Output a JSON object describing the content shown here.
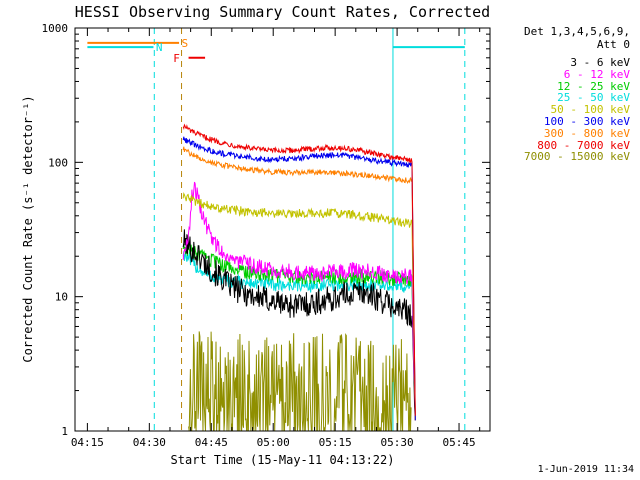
{
  "footer": {
    "timestamp": "1-Jun-2019 11:34"
  },
  "chart_data": {
    "type": "line",
    "title": "HESSI Observing Summary Count Rates, Corrected",
    "xlabel": "Start Time (15-May-11 04:13:22)",
    "ylabel": "Corrected Count Rate (s⁻¹ detector⁻¹)",
    "x_axis": {
      "unit": "minutes-since-midnight",
      "min": 252,
      "max": 352.5,
      "minor_step": 5,
      "major_ticks": [
        {
          "t": 255,
          "label": "04:15"
        },
        {
          "t": 270,
          "label": "04:30"
        },
        {
          "t": 285,
          "label": "04:45"
        },
        {
          "t": 300,
          "label": "05:00"
        },
        {
          "t": 315,
          "label": "05:15"
        },
        {
          "t": 330,
          "label": "05:30"
        },
        {
          "t": 345,
          "label": "05:45"
        }
      ]
    },
    "y_axis": {
      "scale": "log",
      "min": 1,
      "max": 1000,
      "ticks": [
        1,
        10,
        100,
        1000
      ]
    },
    "legend": {
      "det_line": "Det 1,3,4,5,6,9,",
      "att_line": "Att 0"
    },
    "series": [
      {
        "name": "3 - 6 keV",
        "color": "#000000",
        "noise": 0.1,
        "seed": 101,
        "points": [
          [
            278.2,
            26
          ],
          [
            280,
            23
          ],
          [
            282,
            20
          ],
          [
            284,
            17
          ],
          [
            286,
            15
          ],
          [
            289,
            12.5
          ],
          [
            292,
            11
          ],
          [
            296,
            10
          ],
          [
            300,
            9.2
          ],
          [
            305,
            8.6
          ],
          [
            310,
            9
          ],
          [
            314,
            9.6
          ],
          [
            318,
            10.5
          ],
          [
            322,
            11
          ],
          [
            326,
            9.5
          ],
          [
            330,
            8.2
          ],
          [
            333.6,
            7.5
          ],
          [
            334.4,
            1.2
          ]
        ]
      },
      {
        "name": "6 - 12 keV",
        "color": "#FF00FF",
        "noise": 0.06,
        "seed": 102,
        "points": [
          [
            278.2,
            20
          ],
          [
            279,
            24
          ],
          [
            279.8,
            36
          ],
          [
            280.3,
            55
          ],
          [
            280.8,
            66
          ],
          [
            281.4,
            60
          ],
          [
            282.2,
            48
          ],
          [
            283.2,
            38
          ],
          [
            284.5,
            30
          ],
          [
            286,
            25
          ],
          [
            288,
            21
          ],
          [
            291,
            18.5
          ],
          [
            295,
            17
          ],
          [
            300,
            16
          ],
          [
            305,
            15.2
          ],
          [
            310,
            15
          ],
          [
            315,
            15.3
          ],
          [
            320,
            15.8
          ],
          [
            325,
            15.2
          ],
          [
            330,
            14.3
          ],
          [
            333.6,
            14
          ],
          [
            334.4,
            1.2
          ]
        ]
      },
      {
        "name": "12 - 25 keV",
        "color": "#00CC00",
        "noise": 0.055,
        "seed": 103,
        "points": [
          [
            278.2,
            24
          ],
          [
            281,
            21
          ],
          [
            284,
            19
          ],
          [
            288,
            17
          ],
          [
            292,
            15.5
          ],
          [
            296,
            15
          ],
          [
            300,
            14.5
          ],
          [
            305,
            14
          ],
          [
            310,
            13.8
          ],
          [
            315,
            14
          ],
          [
            320,
            14.2
          ],
          [
            325,
            14
          ],
          [
            330,
            13.5
          ],
          [
            333.6,
            13
          ],
          [
            334.4,
            1.2
          ]
        ]
      },
      {
        "name": "25 - 50 keV",
        "color": "#00DDDD",
        "noise": 0.05,
        "seed": 104,
        "points": [
          [
            278.2,
            21
          ],
          [
            281,
            17
          ],
          [
            284,
            14.5
          ],
          [
            288,
            13.2
          ],
          [
            292,
            12.8
          ],
          [
            296,
            12.5
          ],
          [
            300,
            12.3
          ],
          [
            305,
            12.2
          ],
          [
            310,
            12
          ],
          [
            315,
            12.2
          ],
          [
            320,
            12.4
          ],
          [
            325,
            12.2
          ],
          [
            330,
            12
          ],
          [
            333.6,
            11.8
          ],
          [
            334.4,
            1.2
          ]
        ]
      },
      {
        "name": "50 - 100 keV",
        "color": "#C2C200",
        "noise": 0.035,
        "seed": 105,
        "points": [
          [
            278.2,
            56
          ],
          [
            281,
            51
          ],
          [
            284,
            48
          ],
          [
            288,
            45
          ],
          [
            292,
            43.5
          ],
          [
            296,
            42.5
          ],
          [
            300,
            42
          ],
          [
            305,
            41.5
          ],
          [
            310,
            41.8
          ],
          [
            315,
            42
          ],
          [
            320,
            40.5
          ],
          [
            325,
            38.5
          ],
          [
            330,
            36.5
          ],
          [
            333.6,
            35
          ],
          [
            334.4,
            1.2
          ]
        ]
      },
      {
        "name": "100 - 300 keV",
        "color": "#0000EE",
        "noise": 0.022,
        "seed": 106,
        "points": [
          [
            278.2,
            150
          ],
          [
            280,
            140
          ],
          [
            282,
            131
          ],
          [
            285,
            122
          ],
          [
            288,
            116
          ],
          [
            291,
            112
          ],
          [
            294,
            109
          ],
          [
            297,
            107
          ],
          [
            300,
            105.5
          ],
          [
            303,
            105.8
          ],
          [
            306,
            107.5
          ],
          [
            309,
            110
          ],
          [
            312,
            112.5
          ],
          [
            315,
            113
          ],
          [
            318,
            111.5
          ],
          [
            321,
            108
          ],
          [
            324,
            104
          ],
          [
            327,
            100.5
          ],
          [
            330,
            97.5
          ],
          [
            333.6,
            95
          ],
          [
            334.4,
            1.2
          ]
        ]
      },
      {
        "name": "300 - 800 keV",
        "color": "#FF8000",
        "noise": 0.02,
        "seed": 107,
        "points": [
          [
            278.2,
            126
          ],
          [
            280,
            116
          ],
          [
            282,
            108
          ],
          [
            285,
            100
          ],
          [
            288,
            95
          ],
          [
            291,
            91
          ],
          [
            294,
            88.5
          ],
          [
            297,
            86.5
          ],
          [
            300,
            85
          ],
          [
            304,
            84
          ],
          [
            308,
            84
          ],
          [
            312,
            84.5
          ],
          [
            316,
            83.5
          ],
          [
            320,
            81.5
          ],
          [
            324,
            79
          ],
          [
            328,
            76
          ],
          [
            333.6,
            73
          ],
          [
            334.4,
            1.2
          ]
        ]
      },
      {
        "name": "800 - 7000 keV",
        "color": "#EE0000",
        "noise": 0.02,
        "seed": 108,
        "points": [
          [
            278.2,
            188
          ],
          [
            280,
            172
          ],
          [
            282,
            160
          ],
          [
            285,
            148
          ],
          [
            288,
            139
          ],
          [
            291,
            133
          ],
          [
            294,
            128
          ],
          [
            297,
            124.5
          ],
          [
            300,
            122
          ],
          [
            303,
            122
          ],
          [
            306,
            123.5
          ],
          [
            309,
            126
          ],
          [
            312,
            128
          ],
          [
            315,
            128.5
          ],
          [
            318,
            126.5
          ],
          [
            321,
            122
          ],
          [
            324,
            117
          ],
          [
            327,
            112
          ],
          [
            330,
            108
          ],
          [
            333.6,
            104
          ],
          [
            334.4,
            1.3
          ]
        ]
      },
      {
        "name": "7000 - 15000 keV",
        "color": "#8F8F00",
        "noise": 0.5,
        "seed": 109,
        "points": [
          [
            279.5,
            1.8
          ],
          [
            283,
            1.9
          ],
          [
            286,
            1.8
          ],
          [
            290,
            1.7
          ],
          [
            294,
            1.8
          ],
          [
            298,
            1.6
          ],
          [
            302,
            1.7
          ],
          [
            306,
            1.7
          ],
          [
            310,
            1.8
          ],
          [
            314,
            1.6
          ],
          [
            318,
            1.7
          ],
          [
            322,
            1.6
          ],
          [
            326,
            1.7
          ],
          [
            330,
            1.6
          ],
          [
            333.4,
            1.5
          ]
        ]
      }
    ],
    "flags": {
      "bars": [
        {
          "label": "S",
          "color": "#FF8000",
          "t1": 255,
          "t2": 277.2,
          "value": 775,
          "label_t": 278.6
        },
        {
          "label": "N",
          "color": "#00DDDD",
          "t1": 255,
          "t2": 271.0,
          "value": 720,
          "label_t": 272.4
        },
        {
          "label": "",
          "color": "#00DDDD",
          "t1": 329,
          "t2": 346.4,
          "value": 720,
          "label_t": null
        },
        {
          "label": "F",
          "color": "#EE0000",
          "t1": 279.5,
          "t2": 283.5,
          "value": 600,
          "label_t": 276.6
        }
      ],
      "vlines": [
        {
          "t": 271.2,
          "color": "#00DDDD",
          "dashed": true
        },
        {
          "t": 277.8,
          "color": "#B8860B",
          "dashed": true
        },
        {
          "t": 329,
          "color": "#00DDDD",
          "dashed": false
        },
        {
          "t": 346.4,
          "color": "#00DDDD",
          "dashed": true
        }
      ]
    }
  }
}
